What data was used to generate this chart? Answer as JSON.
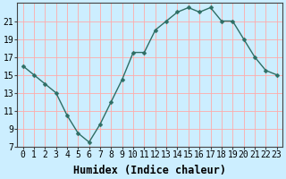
{
  "x": [
    0,
    1,
    2,
    3,
    4,
    5,
    6,
    7,
    8,
    9,
    10,
    11,
    12,
    13,
    14,
    15,
    16,
    17,
    18,
    19,
    20,
    21,
    22,
    23
  ],
  "y": [
    16,
    15,
    14,
    13,
    10.5,
    8.5,
    7.5,
    9.5,
    12,
    14.5,
    17.5,
    17.5,
    20,
    21,
    22,
    22.5,
    22,
    22.5,
    21,
    21,
    19,
    17,
    15.5,
    15
  ],
  "line_color": "#2e6e64",
  "marker": "D",
  "marker_size": 2.5,
  "bg_color": "#cceeff",
  "grid_color": "#ffaaaa",
  "xlabel": "Humidex (Indice chaleur)",
  "ylabel": "",
  "xlim": [
    -0.5,
    23.5
  ],
  "ylim": [
    7,
    23
  ],
  "yticks": [
    7,
    9,
    11,
    13,
    15,
    17,
    19,
    21
  ],
  "xtick_labels": [
    "0",
    "1",
    "2",
    "3",
    "4",
    "5",
    "6",
    "7",
    "8",
    "9",
    "10",
    "11",
    "12",
    "13",
    "14",
    "15",
    "16",
    "17",
    "18",
    "19",
    "20",
    "21",
    "22",
    "23"
  ],
  "xlabel_fontsize": 8.5,
  "tick_fontsize": 7,
  "line_width": 1.0
}
